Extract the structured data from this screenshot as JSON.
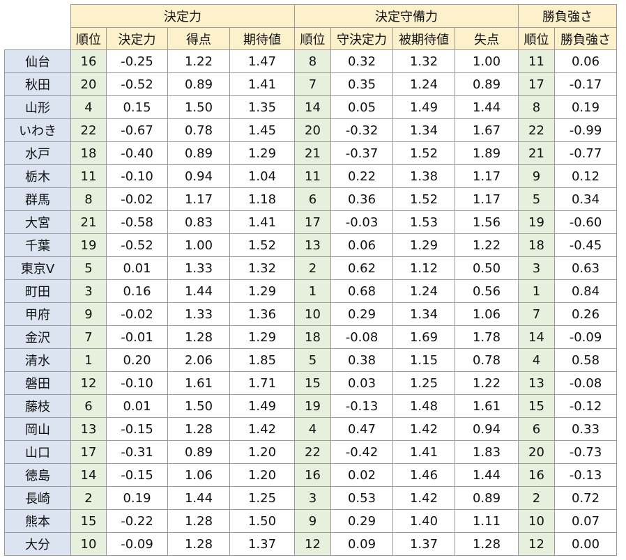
{
  "header": {
    "groups": [
      "決定力",
      "決定守備力",
      "勝負強さ"
    ],
    "columns": [
      "順位",
      "決定力",
      "得点",
      "期待値",
      "順位",
      "守決定力",
      "被期待値",
      "失点",
      "順位",
      "勝負強さ"
    ]
  },
  "rows": [
    {
      "team": "仙台",
      "v": [
        "16",
        "-0.25",
        "1.22",
        "1.47",
        "8",
        "0.32",
        "1.32",
        "1.00",
        "11",
        "0.06"
      ]
    },
    {
      "team": "秋田",
      "v": [
        "20",
        "-0.52",
        "0.89",
        "1.41",
        "7",
        "0.35",
        "1.24",
        "0.89",
        "17",
        "-0.17"
      ]
    },
    {
      "team": "山形",
      "v": [
        "4",
        "0.15",
        "1.50",
        "1.35",
        "14",
        "0.05",
        "1.49",
        "1.44",
        "8",
        "0.19"
      ]
    },
    {
      "team": "いわき",
      "v": [
        "22",
        "-0.67",
        "0.78",
        "1.45",
        "20",
        "-0.32",
        "1.34",
        "1.67",
        "22",
        "-0.99"
      ]
    },
    {
      "team": "水戸",
      "v": [
        "18",
        "-0.40",
        "0.89",
        "1.29",
        "21",
        "-0.37",
        "1.52",
        "1.89",
        "21",
        "-0.77"
      ]
    },
    {
      "team": "栃木",
      "v": [
        "11",
        "-0.10",
        "0.94",
        "1.04",
        "11",
        "0.22",
        "1.38",
        "1.17",
        "9",
        "0.12"
      ]
    },
    {
      "team": "群馬",
      "v": [
        "8",
        "-0.02",
        "1.17",
        "1.18",
        "6",
        "0.36",
        "1.52",
        "1.17",
        "5",
        "0.34"
      ]
    },
    {
      "team": "大宮",
      "v": [
        "21",
        "-0.58",
        "0.83",
        "1.41",
        "17",
        "-0.03",
        "1.53",
        "1.56",
        "19",
        "-0.60"
      ]
    },
    {
      "team": "千葉",
      "v": [
        "19",
        "-0.52",
        "1.00",
        "1.52",
        "13",
        "0.06",
        "1.29",
        "1.22",
        "18",
        "-0.45"
      ]
    },
    {
      "team": "東京V",
      "v": [
        "5",
        "0.01",
        "1.33",
        "1.32",
        "2",
        "0.62",
        "1.12",
        "0.50",
        "3",
        "0.63"
      ]
    },
    {
      "team": "町田",
      "v": [
        "3",
        "0.16",
        "1.44",
        "1.29",
        "1",
        "0.68",
        "1.24",
        "0.56",
        "1",
        "0.84"
      ]
    },
    {
      "team": "甲府",
      "v": [
        "9",
        "-0.02",
        "1.33",
        "1.36",
        "10",
        "0.29",
        "1.34",
        "1.06",
        "7",
        "0.26"
      ]
    },
    {
      "team": "金沢",
      "v": [
        "7",
        "-0.01",
        "1.28",
        "1.29",
        "18",
        "-0.08",
        "1.69",
        "1.78",
        "14",
        "-0.09"
      ]
    },
    {
      "team": "清水",
      "v": [
        "1",
        "0.20",
        "2.06",
        "1.85",
        "5",
        "0.38",
        "1.15",
        "0.78",
        "4",
        "0.58"
      ]
    },
    {
      "team": "磐田",
      "v": [
        "12",
        "-0.10",
        "1.61",
        "1.71",
        "15",
        "0.03",
        "1.25",
        "1.22",
        "13",
        "-0.08"
      ]
    },
    {
      "team": "藤枝",
      "v": [
        "6",
        "0.01",
        "1.50",
        "1.49",
        "19",
        "-0.13",
        "1.48",
        "1.61",
        "15",
        "-0.12"
      ]
    },
    {
      "team": "岡山",
      "v": [
        "13",
        "-0.15",
        "1.28",
        "1.42",
        "4",
        "0.47",
        "1.42",
        "0.94",
        "6",
        "0.33"
      ]
    },
    {
      "team": "山口",
      "v": [
        "17",
        "-0.31",
        "0.89",
        "1.20",
        "22",
        "-0.42",
        "1.41",
        "1.83",
        "20",
        "-0.73"
      ]
    },
    {
      "team": "徳島",
      "v": [
        "14",
        "-0.15",
        "1.06",
        "1.20",
        "16",
        "0.02",
        "1.46",
        "1.44",
        "16",
        "-0.13"
      ]
    },
    {
      "team": "長崎",
      "v": [
        "2",
        "0.19",
        "1.44",
        "1.25",
        "3",
        "0.53",
        "1.42",
        "0.89",
        "2",
        "0.72"
      ]
    },
    {
      "team": "熊本",
      "v": [
        "15",
        "-0.22",
        "1.28",
        "1.50",
        "9",
        "0.29",
        "1.40",
        "1.11",
        "10",
        "0.07"
      ]
    },
    {
      "team": "大分",
      "v": [
        "10",
        "-0.09",
        "1.28",
        "1.37",
        "12",
        "0.09",
        "1.37",
        "1.28",
        "12",
        "0.00"
      ]
    }
  ]
}
